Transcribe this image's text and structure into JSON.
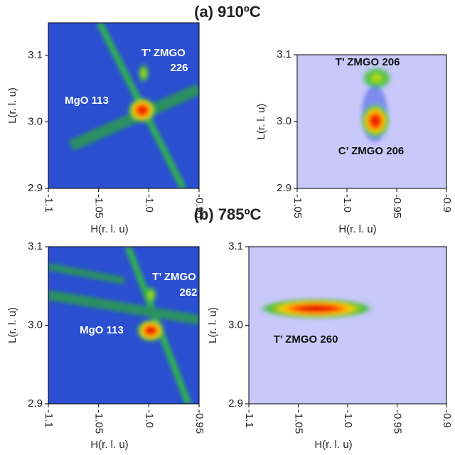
{
  "figure_labels": [
    "(a) 910ºC",
    "(b) 785ºC"
  ],
  "chart_data": [
    {
      "type": "rsm",
      "xlabel": "H(r. l. u)",
      "ylabel": "L(r. l. u)",
      "xlim": [
        -1.1,
        -0.95
      ],
      "xticks": [
        -1.1,
        -1.05,
        {
          "value": -1,
          "label": "-1.0"
        },
        -0.95
      ],
      "ylim": [
        2.9,
        3.149
      ],
      "yticks": [
        2.9,
        {
          "value": 3,
          "label": "3.0"
        },
        3.1
      ],
      "annotations": [
        "T’ ZMGO",
        "226",
        "MgO 113"
      ]
    },
    {
      "type": "rsm",
      "xlabel": "H(r. l. u)",
      "ylabel": "L(r. l. u)",
      "xlim": [
        -1.05,
        -0.9
      ],
      "xticks": [
        -1.05,
        {
          "value": -1,
          "label": "-1.0"
        },
        -0.95,
        -0.9
      ],
      "ylim": [
        2.9,
        3.1
      ],
      "yticks": [
        2.9,
        {
          "value": 3,
          "label": "3.0"
        },
        3.1
      ],
      "annotations": [
        "T’ ZMGO 206",
        "C’ ZMGO 206"
      ]
    },
    {
      "type": "rsm",
      "xlabel": "H(r. l. u)",
      "ylabel": "L(r. l. u)",
      "xlim": [
        -1.1,
        -0.95
      ],
      "xticks": [
        -1.1,
        -1.05,
        {
          "value": -1,
          "label": "-1.0"
        },
        -0.95
      ],
      "ylim": [
        2.9,
        3.1
      ],
      "yticks": [
        2.9,
        {
          "value": 3,
          "label": "3.0"
        },
        3.1
      ],
      "annotations": [
        "T’ ZMGO",
        "262",
        "MgO 113"
      ]
    },
    {
      "type": "rsm",
      "xlabel": "H(r. l. u)",
      "ylabel": "L(r. l. u)",
      "xlim": [
        -1.1,
        -0.9
      ],
      "xticks": [
        -1.1,
        -1.05,
        {
          "value": -1,
          "label": "-1.0"
        },
        -0.95,
        -0.9
      ],
      "ylim": [
        2.9,
        3.1
      ],
      "yticks": [
        2.9,
        {
          "value": 3,
          "label": "3.0"
        },
        3.1
      ],
      "annotations": [
        "T’ ZMGO 260"
      ]
    }
  ]
}
